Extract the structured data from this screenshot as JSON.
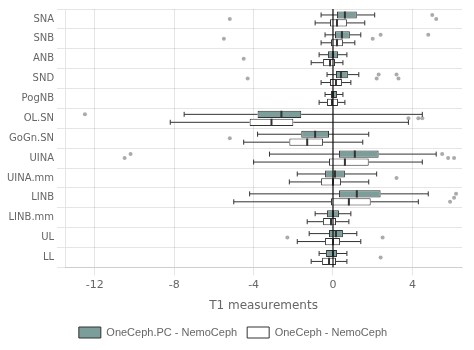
{
  "chart_data": {
    "type": "boxplot",
    "orientation": "horizontal",
    "xlabel": "T1 measurements",
    "categories": [
      "SNA",
      "SNB",
      "ANB",
      "SND",
      "PogNB",
      "OL.SN",
      "GoGn.SN",
      "UINA",
      "UINA.mm",
      "LINB",
      "LINB.mm",
      "UL",
      "LL"
    ],
    "xlim": [
      -13.5,
      6.5
    ],
    "xticks": [
      -12,
      -8,
      -4,
      0,
      4
    ],
    "grid": true,
    "legend": "bottom",
    "reference_line": 0,
    "series": [
      {
        "name": "OneCeph.PC - NemoCeph",
        "color": "#7b9e9a",
        "boxes": [
          {
            "q1": 0.2,
            "med": 0.6,
            "q3": 1.2,
            "whislo": -0.6,
            "whishi": 2.1
          },
          {
            "q1": 0.1,
            "med": 0.45,
            "q3": 0.85,
            "whislo": -0.4,
            "whishi": 1.4
          },
          {
            "q1": -0.25,
            "med": 0.0,
            "q3": 0.25,
            "whislo": -0.7,
            "whishi": 0.7
          },
          {
            "q1": 0.15,
            "med": 0.4,
            "q3": 0.75,
            "whislo": -0.3,
            "whishi": 1.3
          },
          {
            "q1": -0.1,
            "med": 0.0,
            "q3": 0.2,
            "whislo": -0.4,
            "whishi": 0.5
          },
          {
            "q1": -3.8,
            "med": -2.6,
            "q3": -1.6,
            "whislo": -7.5,
            "whishi": 4.5
          },
          {
            "q1": -1.6,
            "med": -0.9,
            "q3": -0.2,
            "whislo": -3.8,
            "whishi": 1.8
          },
          {
            "q1": 0.3,
            "med": 1.1,
            "q3": 2.3,
            "whislo": -3.2,
            "whishi": 5.2
          },
          {
            "q1": -0.4,
            "med": 0.1,
            "q3": 0.6,
            "whislo": -1.8,
            "whishi": 2.2
          },
          {
            "q1": 0.3,
            "med": 1.2,
            "q3": 2.4,
            "whislo": -4.2,
            "whishi": 4.8
          },
          {
            "q1": -0.3,
            "med": 0.0,
            "q3": 0.3,
            "whislo": -0.9,
            "whishi": 0.9
          },
          {
            "q1": -0.2,
            "med": 0.15,
            "q3": 0.5,
            "whislo": -1.2,
            "whishi": 1.2
          },
          {
            "q1": -0.35,
            "med": 0.0,
            "q3": 0.2,
            "whislo": -0.7,
            "whishi": 0.7
          }
        ],
        "outliers": [
          [
            5.0
          ],
          [
            2.4,
            4.8
          ],
          [],
          [
            2.3,
            3.2
          ],
          [],
          [
            -12.5
          ],
          [],
          [
            -10.2,
            5.5
          ],
          [],
          [
            6.2
          ],
          [],
          [],
          []
        ]
      },
      {
        "name": "OneCeph - NemoCeph",
        "color": "#ffffff",
        "boxes": [
          {
            "q1": -0.15,
            "med": 0.2,
            "q3": 0.7,
            "whislo": -0.9,
            "whishi": 1.6
          },
          {
            "q1": -0.1,
            "med": 0.2,
            "q3": 0.5,
            "whislo": -0.6,
            "whishi": 1.1
          },
          {
            "q1": -0.5,
            "med": -0.15,
            "q3": 0.1,
            "whislo": -1.1,
            "whishi": 0.5
          },
          {
            "q1": -0.15,
            "med": 0.15,
            "q3": 0.45,
            "whislo": -0.6,
            "whishi": 0.9
          },
          {
            "q1": -0.3,
            "med": -0.05,
            "q3": 0.25,
            "whislo": -0.7,
            "whishi": 0.6
          },
          {
            "q1": -4.2,
            "med": -3.1,
            "q3": -2.0,
            "whislo": -8.2,
            "whishi": 3.8
          },
          {
            "q1": -2.2,
            "med": -1.3,
            "q3": -0.5,
            "whislo": -4.5,
            "whishi": 1.5
          },
          {
            "q1": -0.2,
            "med": 0.6,
            "q3": 1.8,
            "whislo": -4.0,
            "whishi": 4.5
          },
          {
            "q1": -0.6,
            "med": 0.0,
            "q3": 0.4,
            "whislo": -2.2,
            "whishi": 1.8
          },
          {
            "q1": -0.1,
            "med": 0.8,
            "q3": 1.9,
            "whislo": -5.0,
            "whishi": 4.3
          },
          {
            "q1": -0.5,
            "med": -0.1,
            "q3": 0.15,
            "whislo": -1.3,
            "whishi": 0.8
          },
          {
            "q1": -0.4,
            "med": 0.0,
            "q3": 0.35,
            "whislo": -1.8,
            "whishi": 1.4
          },
          {
            "q1": -0.55,
            "med": -0.2,
            "q3": 0.15,
            "whislo": -1.1,
            "whishi": 0.7
          }
        ],
        "outliers": [
          [],
          [],
          [],
          [],
          [],
          [],
          [],
          [],
          [],
          [
            5.9
          ],
          [],
          [],
          []
        ]
      }
    ],
    "dots": [
      [
        -5.2,
        5.2
      ],
      [
        -5.5,
        2.0
      ],
      [
        -4.5
      ],
      [
        -4.3,
        3.3,
        2.2
      ],
      [],
      [
        3.8,
        4.5,
        4.3
      ],
      [
        -5.2
      ],
      [
        -10.5,
        5.8,
        6.1
      ],
      [
        3.2
      ],
      [
        6.1
      ],
      [],
      [
        -2.3,
        2.5
      ],
      [
        2.4
      ]
    ]
  }
}
